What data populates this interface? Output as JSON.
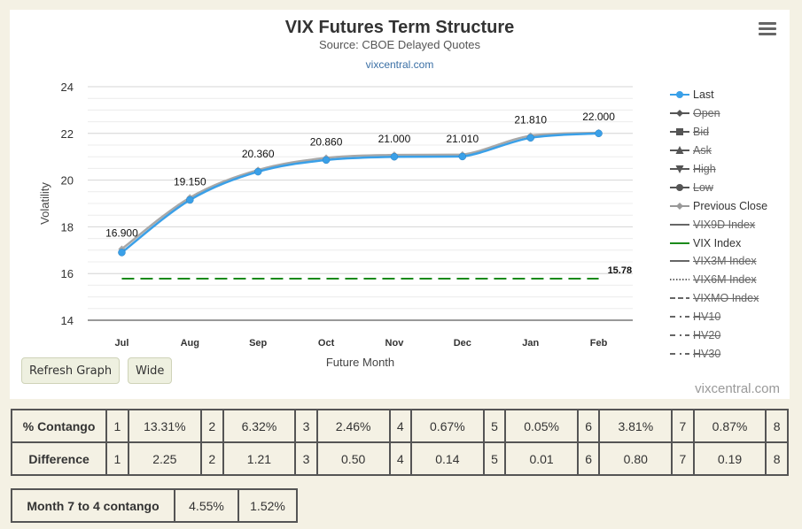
{
  "header": {
    "title": "VIX Futures Term Structure",
    "subtitle": "Source: CBOE Delayed Quotes",
    "link": "vixcentral.com"
  },
  "credit": "vixcentral.com",
  "buttons": {
    "refresh": "Refresh Graph",
    "wide": "Wide"
  },
  "chart_data": {
    "type": "line",
    "xlabel": "Future Month",
    "ylabel": "Volatility",
    "categories": [
      "Jul",
      "Aug",
      "Sep",
      "Oct",
      "Nov",
      "Dec",
      "Jan",
      "Feb"
    ],
    "ylim": [
      14,
      24
    ],
    "yticks": [
      14,
      16,
      18,
      20,
      22,
      24
    ],
    "grid": true,
    "series": [
      {
        "name": "Last",
        "values": [
          16.9,
          19.15,
          20.36,
          20.86,
          21.0,
          21.01,
          21.81,
          22.0
        ],
        "color": "#3aa0e8",
        "data_labels": [
          "16.900",
          "19.150",
          "20.360",
          "20.860",
          "21.000",
          "21.010",
          "21.810",
          "22.000"
        ]
      },
      {
        "name": "Previous Close",
        "values": [
          17.05,
          19.25,
          20.43,
          20.95,
          21.08,
          21.09,
          21.9,
          22.03
        ],
        "color": "#a8a8a8"
      },
      {
        "name": "VIX Index",
        "value": 15.78,
        "label": "15.78",
        "color": "#1a8a1a",
        "style": "dashed"
      }
    ],
    "legend_position": "right"
  },
  "legend": [
    {
      "label": "Last",
      "symbol": "circle",
      "color": "#3aa0e8",
      "active": true
    },
    {
      "label": "Open",
      "symbol": "diamond",
      "color": "#555555",
      "active": false
    },
    {
      "label": "Bid",
      "symbol": "square",
      "color": "#555555",
      "active": false
    },
    {
      "label": "Ask",
      "symbol": "triangle",
      "color": "#555555",
      "active": false
    },
    {
      "label": "High",
      "symbol": "triangle-down",
      "color": "#555555",
      "active": false
    },
    {
      "label": "Low",
      "symbol": "circle",
      "color": "#555555",
      "active": false
    },
    {
      "label": "Previous Close",
      "symbol": "diamond",
      "color": "#999999",
      "active": true
    },
    {
      "label": "VIX9D Index",
      "symbol": "line",
      "color": "#666666",
      "active": false
    },
    {
      "label": "VIX Index",
      "symbol": "line",
      "color": "#1a8a1a",
      "active": true
    },
    {
      "label": "VIX3M Index",
      "symbol": "line",
      "color": "#666666",
      "active": false
    },
    {
      "label": "VIX6M Index",
      "symbol": "dotted",
      "color": "#666666",
      "active": false
    },
    {
      "label": "VIXMO Index",
      "symbol": "dashed",
      "color": "#666666",
      "active": false
    },
    {
      "label": "HV10",
      "symbol": "dashdot",
      "color": "#666666",
      "active": false
    },
    {
      "label": "HV20",
      "symbol": "dashdot",
      "color": "#666666",
      "active": false
    },
    {
      "label": "HV30",
      "symbol": "dashdot",
      "color": "#666666",
      "active": false
    }
  ],
  "contango_table": {
    "rows": [
      {
        "label": "% Contango",
        "cells": [
          "1",
          "13.31%",
          "2",
          "6.32%",
          "3",
          "2.46%",
          "4",
          "0.67%",
          "5",
          "0.05%",
          "6",
          "3.81%",
          "7",
          "0.87%",
          "8"
        ]
      },
      {
        "label": "Difference",
        "cells": [
          "1",
          "2.25",
          "2",
          "1.21",
          "3",
          "0.50",
          "4",
          "0.14",
          "5",
          "0.01",
          "6",
          "0.80",
          "7",
          "0.19",
          "8"
        ]
      }
    ]
  },
  "month_table": {
    "label": "Month 7 to 4 contango",
    "values": [
      "4.55%",
      "1.52%"
    ]
  }
}
